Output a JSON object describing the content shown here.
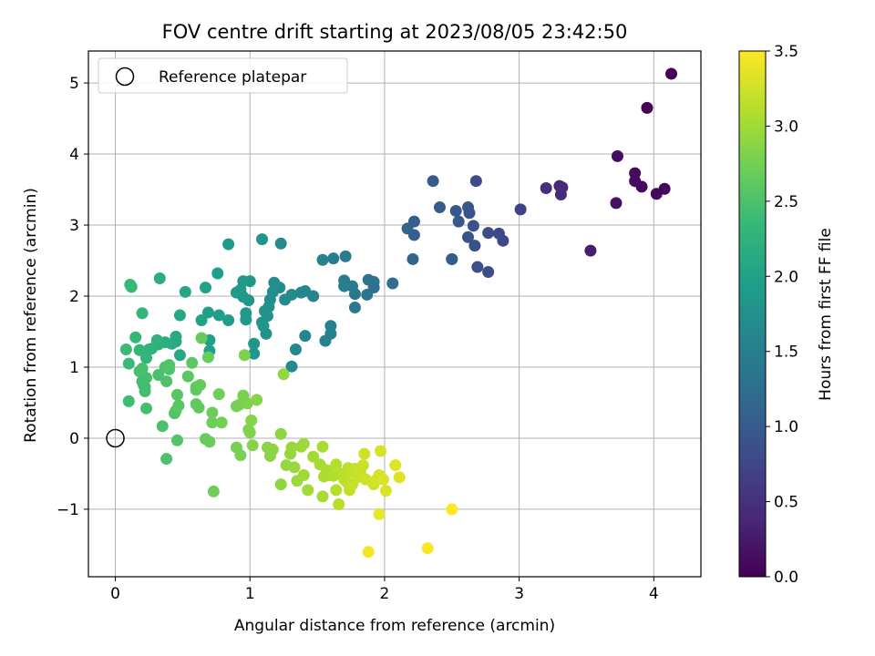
{
  "chart_data": {
    "type": "scatter",
    "title": "FOV centre drift starting at 2023/08/05 23:42:50",
    "xlabel": "Angular distance from reference (arcmin)",
    "ylabel": "Rotation from reference (arcmin)",
    "xlim": [
      -0.2,
      4.35
    ],
    "ylim": [
      -1.95,
      5.45
    ],
    "xticks": [
      0,
      1,
      2,
      3,
      4
    ],
    "yticks": [
      -1,
      0,
      1,
      2,
      3,
      4,
      5
    ],
    "xtick_labels": [
      "0",
      "1",
      "2",
      "3",
      "4"
    ],
    "ytick_labels": [
      "−1",
      "0",
      "1",
      "2",
      "3",
      "4",
      "5"
    ],
    "grid": true,
    "colormap": "viridis",
    "colormap_stops": [
      "#440154",
      "#482878",
      "#3e4989",
      "#31688e",
      "#26828e",
      "#1f9e89",
      "#35b779",
      "#6ece58",
      "#b5de2b",
      "#fde725"
    ],
    "legend": {
      "placement": "upper-left",
      "entries": [
        {
          "label": "Reference platepar",
          "marker": "open-circle"
        }
      ]
    },
    "reference_point": {
      "x": 0,
      "y": 0
    },
    "colorbar": {
      "label": "Hours from first FF file",
      "range": [
        0,
        3.5
      ],
      "ticks": [
        0,
        0.5,
        1,
        1.5,
        2,
        2.5,
        3,
        3.5
      ],
      "tick_labels": [
        "0.0",
        "0.5",
        "1.0",
        "1.5",
        "2.0",
        "2.5",
        "3.0",
        "3.5"
      ]
    },
    "points": [
      [
        4.13,
        5.13,
        0.0
      ],
      [
        3.95,
        4.65,
        0.03
      ],
      [
        4.08,
        3.51,
        0.05
      ],
      [
        4.02,
        3.44,
        0.07
      ],
      [
        3.91,
        3.54,
        0.09
      ],
      [
        3.86,
        3.73,
        0.11
      ],
      [
        3.86,
        3.62,
        0.12
      ],
      [
        3.73,
        3.97,
        0.14
      ],
      [
        3.72,
        3.31,
        0.16
      ],
      [
        3.53,
        2.64,
        0.3
      ],
      [
        3.3,
        3.55,
        0.4
      ],
      [
        3.32,
        3.53,
        0.42
      ],
      [
        3.31,
        3.43,
        0.45
      ],
      [
        3.2,
        3.52,
        0.47
      ],
      [
        3.01,
        3.22,
        0.7
      ],
      [
        2.88,
        2.78,
        0.75
      ],
      [
        2.85,
        2.88,
        0.78
      ],
      [
        2.77,
        2.89,
        0.8
      ],
      [
        2.77,
        2.34,
        0.83
      ],
      [
        2.69,
        2.41,
        0.85
      ],
      [
        2.68,
        3.62,
        0.8
      ],
      [
        2.67,
        2.71,
        0.87
      ],
      [
        2.66,
        2.99,
        0.88
      ],
      [
        2.63,
        3.17,
        0.9
      ],
      [
        2.62,
        2.83,
        0.92
      ],
      [
        2.62,
        3.25,
        0.93
      ],
      [
        2.55,
        3.05,
        0.95
      ],
      [
        2.53,
        3.2,
        0.97
      ],
      [
        2.5,
        2.52,
        1.0
      ],
      [
        2.5,
        2.52,
        1.02
      ],
      [
        2.41,
        3.25,
        1.0
      ],
      [
        2.36,
        3.62,
        1.0
      ],
      [
        2.22,
        3.05,
        1.05
      ],
      [
        2.22,
        2.86,
        1.07
      ],
      [
        2.21,
        2.52,
        1.1
      ],
      [
        2.17,
        2.95,
        1.12
      ],
      [
        2.06,
        2.18,
        1.25
      ],
      [
        1.92,
        2.12,
        1.3
      ],
      [
        1.92,
        2.2,
        1.32
      ],
      [
        1.88,
        2.23,
        1.35
      ],
      [
        1.87,
        2.02,
        1.37
      ],
      [
        1.78,
        2.03,
        1.4
      ],
      [
        1.78,
        1.84,
        1.42
      ],
      [
        1.76,
        2.14,
        1.45
      ],
      [
        1.71,
        2.56,
        1.45
      ],
      [
        1.7,
        2.22,
        1.47
      ],
      [
        1.7,
        2.14,
        1.5
      ],
      [
        1.62,
        2.53,
        1.5
      ],
      [
        1.6,
        1.58,
        1.52
      ],
      [
        1.6,
        1.47,
        1.53
      ],
      [
        1.56,
        1.37,
        1.55
      ],
      [
        1.54,
        2.51,
        1.55
      ],
      [
        1.47,
        2.0,
        1.58
      ],
      [
        1.41,
        1.44,
        1.6
      ],
      [
        1.41,
        2.07,
        1.6
      ],
      [
        1.38,
        2.05,
        1.62
      ],
      [
        1.34,
        1.25,
        1.63
      ],
      [
        1.31,
        1.01,
        1.65
      ],
      [
        1.31,
        2.02,
        1.66
      ],
      [
        1.26,
        1.95,
        1.68
      ],
      [
        1.23,
        2.74,
        1.68
      ],
      [
        1.22,
        2.12,
        1.7
      ],
      [
        1.18,
        2.19,
        1.72
      ],
      [
        1.17,
        2.06,
        1.73
      ],
      [
        1.15,
        1.95,
        1.74
      ],
      [
        1.14,
        1.85,
        1.75
      ],
      [
        1.13,
        1.72,
        1.76
      ],
      [
        1.12,
        1.47,
        1.78
      ],
      [
        1.11,
        1.79,
        1.79
      ],
      [
        1.1,
        1.58,
        1.8
      ],
      [
        1.09,
        2.8,
        1.8
      ],
      [
        1.09,
        1.63,
        1.81
      ],
      [
        1.03,
        1.33,
        1.82
      ],
      [
        1.03,
        1.19,
        1.83
      ],
      [
        1.0,
        2.21,
        1.84
      ],
      [
        0.99,
        1.94,
        1.85
      ],
      [
        0.97,
        1.76,
        1.86
      ],
      [
        0.97,
        1.67,
        1.87
      ],
      [
        0.95,
        2.21,
        1.88
      ],
      [
        0.95,
        1.99,
        1.89
      ],
      [
        0.93,
        2.09,
        1.9
      ],
      [
        0.9,
        2.05,
        1.91
      ],
      [
        0.84,
        2.73,
        1.92
      ],
      [
        0.84,
        1.66,
        1.93
      ],
      [
        0.77,
        1.73,
        1.94
      ],
      [
        0.76,
        2.32,
        1.95
      ],
      [
        0.7,
        1.38,
        1.97
      ],
      [
        0.7,
        1.23,
        1.98
      ],
      [
        0.69,
        1.77,
        1.98
      ],
      [
        0.67,
        2.12,
        2.0
      ],
      [
        0.64,
        1.66,
        2.02
      ],
      [
        0.52,
        2.06,
        2.05
      ],
      [
        0.48,
        1.73,
        2.07
      ],
      [
        0.48,
        1.17,
        2.1
      ],
      [
        0.45,
        1.43,
        2.12
      ],
      [
        0.45,
        1.36,
        2.13
      ],
      [
        0.42,
        1.33,
        2.15
      ],
      [
        0.37,
        1.35,
        2.17
      ],
      [
        0.33,
        2.25,
        2.18
      ],
      [
        0.32,
        1.32,
        2.2
      ],
      [
        0.31,
        1.38,
        2.22
      ],
      [
        0.27,
        1.26,
        2.24
      ],
      [
        0.25,
        1.25,
        2.26
      ],
      [
        0.23,
        1.13,
        2.28
      ],
      [
        0.2,
        1.76,
        2.3
      ],
      [
        0.18,
        1.24,
        2.3
      ],
      [
        0.15,
        1.42,
        2.32
      ],
      [
        0.12,
        2.13,
        2.34
      ],
      [
        0.11,
        2.16,
        2.35
      ],
      [
        0.1,
        1.05,
        2.36
      ],
      [
        0.08,
        1.25,
        2.38
      ],
      [
        0.1,
        0.52,
        2.4
      ],
      [
        0.2,
        0.8,
        2.4
      ],
      [
        0.21,
        0.75,
        2.41
      ],
      [
        0.22,
        0.72,
        2.42
      ],
      [
        0.22,
        0.66,
        2.43
      ],
      [
        0.23,
        0.85,
        2.44
      ],
      [
        0.23,
        0.42,
        2.45
      ],
      [
        0.2,
        0.98,
        2.46
      ],
      [
        0.18,
        0.94,
        2.47
      ],
      [
        0.32,
        0.89,
        2.48
      ],
      [
        0.35,
        0.17,
        2.49
      ],
      [
        0.37,
        1.0,
        2.5
      ],
      [
        0.38,
        -0.29,
        2.5
      ],
      [
        0.38,
        0.8,
        2.51
      ],
      [
        0.4,
        1.03,
        2.52
      ],
      [
        0.4,
        0.97,
        2.53
      ],
      [
        0.44,
        0.35,
        2.54
      ],
      [
        0.45,
        0.39,
        2.55
      ],
      [
        0.46,
        -0.03,
        2.56
      ],
      [
        0.46,
        0.61,
        2.57
      ],
      [
        0.47,
        0.46,
        2.58
      ],
      [
        0.54,
        0.87,
        2.59
      ],
      [
        0.57,
        1.06,
        2.6
      ],
      [
        0.6,
        0.72,
        2.61
      ],
      [
        0.6,
        0.68,
        2.62
      ],
      [
        0.6,
        0.48,
        2.63
      ],
      [
        0.62,
        0.43,
        2.64
      ],
      [
        0.63,
        0.75,
        2.65
      ],
      [
        0.64,
        1.41,
        2.66
      ],
      [
        0.67,
        -0.01,
        2.67
      ],
      [
        0.69,
        1.14,
        2.68
      ],
      [
        0.7,
        -0.05,
        2.69
      ],
      [
        0.72,
        0.22,
        2.7
      ],
      [
        0.72,
        0.36,
        2.71
      ],
      [
        0.73,
        -0.75,
        2.72
      ],
      [
        0.77,
        0.62,
        2.73
      ],
      [
        0.79,
        0.22,
        2.74
      ],
      [
        0.9,
        0.45,
        2.75
      ],
      [
        0.9,
        -0.13,
        2.76
      ],
      [
        0.92,
        0.47,
        2.77
      ],
      [
        0.93,
        -0.24,
        2.78
      ],
      [
        0.95,
        0.6,
        2.79
      ],
      [
        0.96,
        1.17,
        2.8
      ],
      [
        0.98,
        0.49,
        2.81
      ],
      [
        0.99,
        0.12,
        2.82
      ],
      [
        1.0,
        0.08,
        2.83
      ],
      [
        1.01,
        0.25,
        2.84
      ],
      [
        1.02,
        -0.1,
        2.85
      ],
      [
        1.05,
        0.54,
        2.86
      ],
      [
        1.13,
        -0.13,
        2.87
      ],
      [
        1.15,
        -0.25,
        2.88
      ],
      [
        1.17,
        -0.16,
        2.89
      ],
      [
        1.23,
        0.06,
        2.9
      ],
      [
        1.23,
        -0.65,
        2.91
      ],
      [
        1.25,
        0.9,
        2.92
      ],
      [
        1.27,
        -0.38,
        2.93
      ],
      [
        1.3,
        -0.22,
        2.94
      ],
      [
        1.31,
        -0.13,
        2.95
      ],
      [
        1.33,
        -0.41,
        2.96
      ],
      [
        1.35,
        -0.6,
        2.97
      ],
      [
        1.38,
        -0.12,
        2.98
      ],
      [
        1.4,
        -0.08,
        2.99
      ],
      [
        1.4,
        -0.52,
        3.0
      ],
      [
        1.43,
        -0.73,
        3.01
      ],
      [
        1.47,
        -0.26,
        3.02
      ],
      [
        1.52,
        -0.37,
        3.03
      ],
      [
        1.54,
        -0.82,
        3.04
      ],
      [
        1.54,
        -0.12,
        3.05
      ],
      [
        1.55,
        -0.54,
        3.06
      ],
      [
        1.57,
        -0.45,
        3.07
      ],
      [
        1.59,
        -0.52,
        3.08
      ],
      [
        1.62,
        -0.53,
        3.09
      ],
      [
        1.64,
        -0.73,
        3.1
      ],
      [
        1.64,
        -0.37,
        3.11
      ],
      [
        1.66,
        -0.93,
        3.12
      ],
      [
        1.68,
        -0.5,
        3.13
      ],
      [
        1.7,
        -0.58,
        3.14
      ],
      [
        1.72,
        -0.62,
        3.15
      ],
      [
        1.73,
        -0.42,
        3.16
      ],
      [
        1.74,
        -0.73,
        3.17
      ],
      [
        1.75,
        -0.47,
        3.18
      ],
      [
        1.76,
        -0.65,
        3.19
      ],
      [
        1.78,
        -0.43,
        3.2
      ],
      [
        1.8,
        -0.55,
        3.21
      ],
      [
        1.82,
        -0.47,
        3.22
      ],
      [
        1.84,
        -0.38,
        3.23
      ],
      [
        1.85,
        -0.22,
        3.24
      ],
      [
        1.86,
        -0.58,
        3.25
      ],
      [
        1.92,
        -0.65,
        3.26
      ],
      [
        1.93,
        -0.6,
        3.27
      ],
      [
        1.96,
        -0.52,
        3.28
      ],
      [
        1.97,
        -0.18,
        3.29
      ],
      [
        1.99,
        -0.58,
        3.3
      ],
      [
        2.01,
        -0.74,
        3.31
      ],
      [
        2.08,
        -0.38,
        3.32
      ],
      [
        2.11,
        -0.55,
        3.33
      ],
      [
        1.96,
        -1.07,
        3.4
      ],
      [
        1.88,
        -1.6,
        3.45
      ],
      [
        2.32,
        -1.55,
        3.48
      ],
      [
        2.5,
        -1.0,
        3.52
      ]
    ]
  }
}
